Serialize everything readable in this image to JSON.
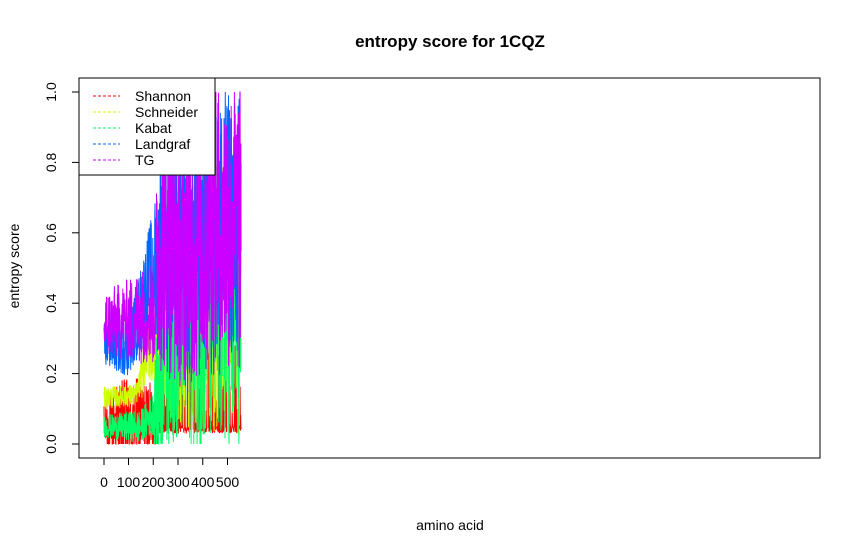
{
  "chart_data": {
    "type": "line",
    "title": "entropy score for  1CQZ",
    "xlabel": "amino acid",
    "ylabel": "entropy score",
    "xlim": [
      0,
      555
    ],
    "ylim": [
      0,
      1.0
    ],
    "x_ticks": [
      0,
      100,
      200,
      300,
      400,
      500
    ],
    "x_tick_labels": [
      "0",
      "100",
      "200",
      "300",
      "400",
      "500"
    ],
    "y_ticks": [
      0.0,
      0.2,
      0.4,
      0.6,
      0.8,
      1.0
    ],
    "y_tick_labels": [
      "0.0",
      "0.2",
      "0.4",
      "0.6",
      "0.8",
      "1.0"
    ],
    "grid": false,
    "legend_position": "top-left",
    "n_points": 555,
    "series": [
      {
        "name": "Shannon",
        "color": "#ff0000",
        "profile": [
          [
            1,
            0.05
          ],
          [
            100,
            0.06
          ],
          [
            220,
            0.07
          ],
          [
            230,
            0.12
          ],
          [
            555,
            0.12
          ]
        ],
        "spread": [
          [
            1,
            0.04
          ],
          [
            50,
            0.08
          ],
          [
            130,
            0.08
          ],
          [
            220,
            0.06
          ],
          [
            230,
            0.16
          ],
          [
            555,
            0.16
          ]
        ]
      },
      {
        "name": "Schneider",
        "color": "#ccff00",
        "profile": [
          [
            1,
            0.13
          ],
          [
            130,
            0.14
          ],
          [
            150,
            0.18
          ],
          [
            175,
            0.28
          ],
          [
            200,
            0.24
          ],
          [
            215,
            0.3
          ],
          [
            230,
            0.45
          ],
          [
            555,
            0.45
          ]
        ],
        "spread": [
          [
            1,
            0.02
          ],
          [
            140,
            0.02
          ],
          [
            160,
            0.05
          ],
          [
            210,
            0.06
          ],
          [
            230,
            0.25
          ],
          [
            555,
            0.27
          ]
        ]
      },
      {
        "name": "Kabat",
        "color": "#00ff66",
        "profile": [
          [
            1,
            0.05
          ],
          [
            150,
            0.05
          ],
          [
            200,
            0.09
          ],
          [
            225,
            0.15
          ],
          [
            240,
            0.35
          ],
          [
            555,
            0.38
          ]
        ],
        "spread": [
          [
            1,
            0.02
          ],
          [
            150,
            0.03
          ],
          [
            200,
            0.04
          ],
          [
            230,
            0.22
          ],
          [
            555,
            0.26
          ]
        ]
      },
      {
        "name": "Landgraf",
        "color": "#0066ff",
        "profile": [
          [
            1,
            0.28
          ],
          [
            100,
            0.28
          ],
          [
            150,
            0.38
          ],
          [
            185,
            0.48
          ],
          [
            225,
            0.52
          ],
          [
            240,
            0.6
          ],
          [
            330,
            0.5
          ],
          [
            430,
            0.65
          ],
          [
            555,
            0.62
          ]
        ],
        "spread": [
          [
            1,
            0.04
          ],
          [
            120,
            0.06
          ],
          [
            150,
            0.08
          ],
          [
            200,
            0.1
          ],
          [
            230,
            0.2
          ],
          [
            555,
            0.24
          ]
        ]
      },
      {
        "name": "TG",
        "color": "#cc00ff",
        "profile": [
          [
            1,
            0.34
          ],
          [
            100,
            0.35
          ],
          [
            200,
            0.38
          ],
          [
            230,
            0.6
          ],
          [
            330,
            0.55
          ],
          [
            430,
            0.6
          ],
          [
            500,
            0.62
          ],
          [
            555,
            0.6
          ]
        ],
        "spread": [
          [
            1,
            0.06
          ],
          [
            130,
            0.08
          ],
          [
            200,
            0.1
          ],
          [
            230,
            0.25
          ],
          [
            555,
            0.27
          ]
        ]
      }
    ]
  }
}
